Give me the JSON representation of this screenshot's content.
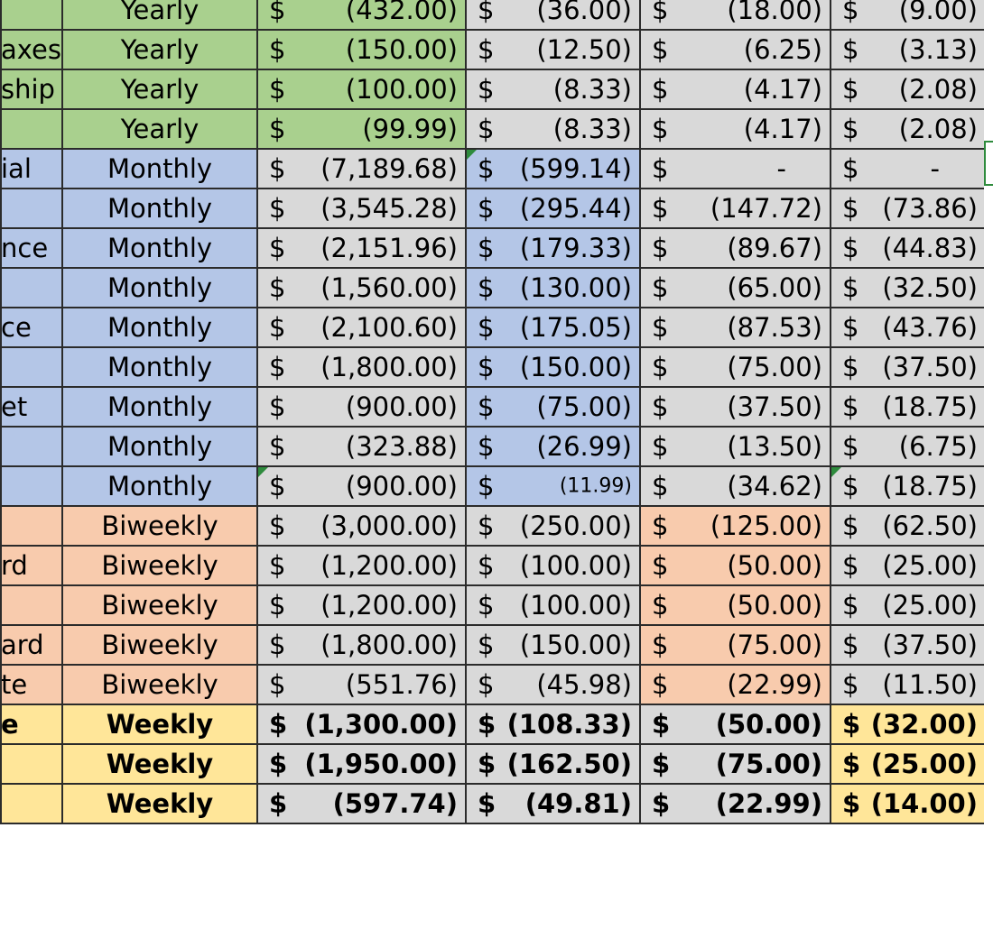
{
  "rows": [
    {
      "name": "",
      "freq": "Yearly",
      "cat": "yearly",
      "vals": [
        "(432.00)",
        "(36.00)",
        "(18.00)",
        "(9.00)"
      ]
    },
    {
      "name": "axes",
      "freq": "Yearly",
      "cat": "yearly",
      "vals": [
        "(150.00)",
        "(12.50)",
        "(6.25)",
        "(3.13)"
      ]
    },
    {
      "name": "ship",
      "freq": "Yearly",
      "cat": "yearly",
      "vals": [
        "(100.00)",
        "(8.33)",
        "(4.17)",
        "(2.08)"
      ]
    },
    {
      "name": "",
      "freq": "Yearly",
      "cat": "yearly",
      "vals": [
        "(99.99)",
        "(8.33)",
        "(4.17)",
        "(2.08)"
      ]
    },
    {
      "name": "ial",
      "freq": "Monthly",
      "cat": "monthly",
      "vals": [
        "(7,189.68)",
        "(599.14)",
        "-",
        "-"
      ]
    },
    {
      "name": "",
      "freq": "Monthly",
      "cat": "monthly",
      "vals": [
        "(3,545.28)",
        "(295.44)",
        "(147.72)",
        "(73.86)"
      ]
    },
    {
      "name": "nce",
      "freq": "Monthly",
      "cat": "monthly",
      "vals": [
        "(2,151.96)",
        "(179.33)",
        "(89.67)",
        "(44.83)"
      ]
    },
    {
      "name": "",
      "freq": "Monthly",
      "cat": "monthly",
      "vals": [
        "(1,560.00)",
        "(130.00)",
        "(65.00)",
        "(32.50)"
      ]
    },
    {
      "name": "ce",
      "freq": "Monthly",
      "cat": "monthly",
      "vals": [
        "(2,100.60)",
        "(175.05)",
        "(87.53)",
        "(43.76)"
      ]
    },
    {
      "name": "",
      "freq": "Monthly",
      "cat": "monthly",
      "vals": [
        "(1,800.00)",
        "(150.00)",
        "(75.00)",
        "(37.50)"
      ]
    },
    {
      "name": "et",
      "freq": "Monthly",
      "cat": "monthly",
      "vals": [
        "(900.00)",
        "(75.00)",
        "(37.50)",
        "(18.75)"
      ]
    },
    {
      "name": "",
      "freq": "Monthly",
      "cat": "monthly",
      "vals": [
        "(323.88)",
        "(26.99)",
        "(13.50)",
        "(6.75)"
      ]
    },
    {
      "name": "",
      "freq": "Monthly",
      "cat": "monthly",
      "vals": [
        "(900.00)",
        "(11.99)",
        "(34.62)",
        "(18.75)"
      ]
    },
    {
      "name": "",
      "freq": "Biweekly",
      "cat": "biweekly",
      "vals": [
        "(3,000.00)",
        "(250.00)",
        "(125.00)",
        "(62.50)"
      ]
    },
    {
      "name": "rd",
      "freq": "Biweekly",
      "cat": "biweekly",
      "vals": [
        "(1,200.00)",
        "(100.00)",
        "(50.00)",
        "(25.00)"
      ]
    },
    {
      "name": "",
      "freq": "Biweekly",
      "cat": "biweekly",
      "vals": [
        "(1,200.00)",
        "(100.00)",
        "(50.00)",
        "(25.00)"
      ]
    },
    {
      "name": "ard",
      "freq": "Biweekly",
      "cat": "biweekly",
      "vals": [
        "(1,800.00)",
        "(150.00)",
        "(75.00)",
        "(37.50)"
      ]
    },
    {
      "name": "te",
      "freq": "Biweekly",
      "cat": "biweekly",
      "vals": [
        "(551.76)",
        "(45.98)",
        "(22.99)",
        "(11.50)"
      ]
    },
    {
      "name": "e",
      "freq": "Weekly",
      "cat": "weekly",
      "vals": [
        "(1,300.00)",
        "(108.33)",
        "(50.00)",
        "(32.00)"
      ]
    },
    {
      "name": "",
      "freq": "Weekly",
      "cat": "weekly",
      "vals": [
        "(1,950.00)",
        "(162.50)",
        "(75.00)",
        "(25.00)"
      ]
    },
    {
      "name": "",
      "freq": "Weekly",
      "cat": "weekly",
      "vals": [
        "(597.74)",
        "(49.81)",
        "(22.99)",
        "(14.00)"
      ]
    }
  ],
  "currency_symbol": "$",
  "colors": {
    "yearly": "#a9d08e",
    "monthly": "#b4c6e7",
    "biweekly": "#f8cbad",
    "weekly": "#ffe699",
    "neutral": "#d9d9d9",
    "grid_border": "#2b2b2b",
    "comment_marker": "#2e8b3d"
  }
}
